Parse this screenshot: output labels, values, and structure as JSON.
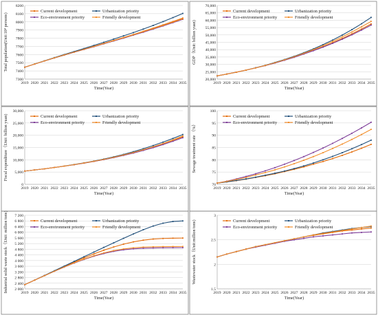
{
  "chart_data": [
    {
      "type": "line",
      "ylabel": "Total population(Unit:10⁴ persons)",
      "xlabel": "Time(Year)",
      "x": [
        "2019",
        "2020",
        "2021",
        "2022",
        "2023",
        "2024",
        "2025",
        "2026",
        "2027",
        "2028",
        "2029",
        "2030",
        "2031",
        "2032",
        "2033",
        "2034",
        "2035"
      ],
      "ylim": [
        7300,
        8200
      ],
      "yticks": [
        7300,
        7400,
        7500,
        7600,
        7700,
        7800,
        7900,
        8000,
        8100,
        8200
      ],
      "ytick_labels": [
        "7300",
        "7400",
        "7500",
        "7600",
        "7700",
        "7800",
        "7900",
        "8000",
        "8100",
        "8200"
      ],
      "grid": true,
      "legend_position": "top-left",
      "series": [
        {
          "name": "Current development",
          "color": "#e46c0a",
          "values": [
            7445,
            7484,
            7523,
            7560,
            7596,
            7631,
            7666,
            7701,
            7737,
            7773,
            7809,
            7846,
            7884,
            7923,
            7963,
            8004,
            8046
          ]
        },
        {
          "name": "Urbanization priority",
          "color": "#1f4e79",
          "values": [
            7445,
            7485,
            7524,
            7563,
            7600,
            7637,
            7674,
            7712,
            7750,
            7789,
            7829,
            7869,
            7912,
            7956,
            8003,
            8052,
            8103
          ]
        },
        {
          "name": "Eco-environment priority",
          "color": "#7d3c98",
          "values": [
            7445,
            7483,
            7521,
            7558,
            7593,
            7628,
            7662,
            7696,
            7731,
            7766,
            7801,
            7837,
            7873,
            7911,
            7950,
            7990,
            8031
          ]
        },
        {
          "name": "Friendly development",
          "color": "#f28e2b",
          "values": [
            7445,
            7484,
            7522,
            7559,
            7595,
            7630,
            7664,
            7699,
            7734,
            7770,
            7806,
            7842,
            7879,
            7917,
            7956,
            7996,
            8037
          ]
        }
      ]
    },
    {
      "type": "line",
      "ylabel": "GDP（Unit: billion yuan)",
      "xlabel": "Time(Year)",
      "x": [
        "2019",
        "2020",
        "2021",
        "2022",
        "2023",
        "2024",
        "2025",
        "2026",
        "2027",
        "2028",
        "2029",
        "2030",
        "2031",
        "2032",
        "2033",
        "2034",
        "2035"
      ],
      "ylim": [
        20000,
        70000
      ],
      "yticks": [
        20000,
        25000,
        30000,
        35000,
        40000,
        45000,
        50000,
        55000,
        60000,
        65000,
        70000
      ],
      "ytick_labels": [
        "20,000",
        "25,000",
        "30,000",
        "35,000",
        "40,000",
        "45,000",
        "50,000",
        "55,000",
        "60,000",
        "65,000",
        "70,000"
      ],
      "grid": true,
      "legend_position": "top-left",
      "series": [
        {
          "name": "Current development",
          "color": "#e46c0a",
          "values": [
            22200,
            23400,
            24700,
            26100,
            27600,
            29200,
            31000,
            32900,
            34900,
            37100,
            39500,
            42000,
            44700,
            47600,
            50700,
            54000,
            57500
          ]
        },
        {
          "name": "Urbanization priority",
          "color": "#1f4e79",
          "values": [
            22200,
            23400,
            24700,
            26100,
            27700,
            29400,
            31300,
            33300,
            35500,
            37900,
            40500,
            43400,
            46500,
            49900,
            53600,
            57600,
            61900
          ]
        },
        {
          "name": "Eco-environment priority",
          "color": "#7d3c98",
          "values": [
            22200,
            23400,
            24700,
            26100,
            27600,
            29200,
            30900,
            32800,
            34800,
            37000,
            39300,
            41700,
            44300,
            47100,
            50100,
            53300,
            56700
          ]
        },
        {
          "name": "Friendly development",
          "color": "#f28e2b",
          "values": [
            22200,
            23400,
            24700,
            26100,
            27600,
            29300,
            31100,
            33100,
            35200,
            37500,
            40000,
            42700,
            45600,
            48700,
            52000,
            55500,
            59200
          ]
        }
      ]
    },
    {
      "type": "line",
      "ylabel": "Fiscal expenditure（Unit: billion yuan)",
      "xlabel": "Time(Year)",
      "x": [
        "2019",
        "2020",
        "2021",
        "2022",
        "2023",
        "2024",
        "2025",
        "2026",
        "2027",
        "2028",
        "2029",
        "2030",
        "2031",
        "2032",
        "2033",
        "2034",
        "2035"
      ],
      "ylim": [
        0,
        30000
      ],
      "yticks": [
        0,
        5000,
        10000,
        15000,
        20000,
        25000,
        30000
      ],
      "ytick_labels": [
        "0",
        "5,000",
        "10,000",
        "15,000",
        "20,000",
        "25,000",
        "30,000"
      ],
      "grid": true,
      "legend_position": "top-left",
      "series": [
        {
          "name": "Current development",
          "color": "#e46c0a",
          "values": [
            5400,
            5850,
            6330,
            6850,
            7400,
            8000,
            8650,
            9350,
            10100,
            10950,
            11900,
            12900,
            14000,
            15200,
            16500,
            17900,
            19400
          ]
        },
        {
          "name": "Urbanization priority",
          "color": "#1f4e79",
          "values": [
            5400,
            5850,
            6340,
            6870,
            7450,
            8080,
            8760,
            9500,
            10300,
            11200,
            12200,
            13300,
            14500,
            15800,
            17200,
            18700,
            20300
          ]
        },
        {
          "name": "Eco-environment priority",
          "color": "#7d3c98",
          "values": [
            5400,
            5850,
            6330,
            6850,
            7400,
            7990,
            8630,
            9320,
            10060,
            10880,
            11780,
            12750,
            13800,
            14950,
            16200,
            17550,
            19000
          ]
        },
        {
          "name": "Friendly development",
          "color": "#f28e2b",
          "values": [
            5400,
            5850,
            6335,
            6860,
            7420,
            8030,
            8690,
            9400,
            10170,
            11020,
            11960,
            12980,
            14100,
            15320,
            16650,
            18100,
            19700
          ]
        }
      ]
    },
    {
      "type": "line",
      "ylabel": "Sewage treatment rate （%）",
      "xlabel": "Time(Year)",
      "x": [
        "2019",
        "2020",
        "2021",
        "2022",
        "2023",
        "2024",
        "2025",
        "2026",
        "2027",
        "2028",
        "2029",
        "2030",
        "2031",
        "2032",
        "2033",
        "2034",
        "2035"
      ],
      "ylim": [
        70,
        100
      ],
      "yticks": [
        70,
        75,
        80,
        85,
        90,
        95,
        100
      ],
      "ytick_labels": [
        "70",
        "75",
        "80",
        "85",
        "90",
        "95",
        "100"
      ],
      "grid": true,
      "legend_position": "top-left",
      "series": [
        {
          "name": "Current development",
          "color": "#e46c0a",
          "values": [
            70.5,
            71.0,
            71.5,
            72.1,
            72.8,
            73.5,
            74.3,
            75.2,
            76.1,
            77.1,
            78.2,
            79.3,
            80.5,
            81.8,
            83.2,
            84.7,
            86.3
          ]
        },
        {
          "name": "Urbanization priority",
          "color": "#1f4e79",
          "values": [
            70.5,
            71.0,
            71.6,
            72.2,
            72.9,
            73.7,
            74.5,
            75.4,
            76.4,
            77.5,
            78.7,
            80.0,
            81.4,
            82.9,
            84.5,
            86.2,
            88.0
          ]
        },
        {
          "name": "Eco-environment priority",
          "color": "#7d3c98",
          "values": [
            70.5,
            71.3,
            72.2,
            73.2,
            74.3,
            75.5,
            76.8,
            78.2,
            79.7,
            81.3,
            83.0,
            84.8,
            86.7,
            88.7,
            90.8,
            93.0,
            95.3
          ]
        },
        {
          "name": "Friendly development",
          "color": "#f28e2b",
          "values": [
            70.5,
            71.2,
            72.0,
            72.8,
            73.8,
            74.8,
            75.9,
            77.1,
            78.4,
            79.8,
            81.3,
            82.9,
            84.6,
            86.4,
            88.3,
            90.3,
            92.4
          ]
        }
      ]
    },
    {
      "type": "line",
      "ylabel": "Industrial solid waste stock（Unit: million tons)",
      "xlabel": "Time(Year)",
      "x": [
        "2019",
        "2020",
        "2021",
        "2022",
        "2023",
        "2024",
        "2025",
        "2026",
        "2027",
        "2028",
        "2029",
        "2030",
        "2031",
        "2032",
        "2033",
        "2034",
        "2035"
      ],
      "ylim": [
        2000,
        7200
      ],
      "yticks": [
        2000,
        2400,
        2800,
        3200,
        3600,
        4000,
        4400,
        4800,
        5200,
        5600,
        6000,
        6400,
        6800,
        7200
      ],
      "ytick_labels": [
        "2 000",
        "2 400",
        "2 800",
        "3 200",
        "3 600",
        "4 000",
        "4 400",
        "4 800",
        "5 200",
        "5 600",
        "6 000",
        "6 400",
        "6 800",
        "7 200"
      ],
      "grid": true,
      "legend_position": "top-left",
      "series": [
        {
          "name": "Current development",
          "color": "#e46c0a",
          "values": [
            2300,
            2620,
            2940,
            3260,
            3580,
            3890,
            4190,
            4470,
            4730,
            4960,
            5160,
            5320,
            5440,
            5520,
            5560,
            5580,
            5590
          ]
        },
        {
          "name": "Urbanization priority",
          "color": "#1f4e79",
          "values": [
            2300,
            2620,
            2950,
            3280,
            3610,
            3940,
            4270,
            4600,
            4930,
            5250,
            5570,
            5880,
            6180,
            6440,
            6640,
            6760,
            6800
          ]
        },
        {
          "name": "Eco-environment priority",
          "color": "#7d3c98",
          "values": [
            2300,
            2615,
            2930,
            3240,
            3540,
            3820,
            4080,
            4310,
            4500,
            4650,
            4760,
            4830,
            4870,
            4890,
            4900,
            4905,
            4910
          ]
        },
        {
          "name": "Friendly development",
          "color": "#f28e2b",
          "values": [
            2300,
            2615,
            2932,
            3245,
            3550,
            3835,
            4100,
            4340,
            4540,
            4700,
            4820,
            4900,
            4950,
            4975,
            4985,
            4990,
            4995
          ]
        }
      ]
    },
    {
      "type": "line",
      "ylabel": "Wastewater stock（Unit:million tons)",
      "xlabel": "Time(Year)",
      "x": [
        "2019",
        "2020",
        "2021",
        "2022",
        "2023",
        "2024",
        "2025",
        "2026",
        "2027",
        "2028",
        "2029",
        "2030",
        "2031",
        "2032",
        "2033",
        "2034",
        "2035"
      ],
      "ylim": [
        1.5,
        3.0
      ],
      "yticks": [
        1.5,
        2.0,
        2.5,
        3.0
      ],
      "ytick_labels": [
        "1.5",
        "2",
        "2.5",
        "3"
      ],
      "grid": true,
      "legend_position": "top-left",
      "series": [
        {
          "name": "Current development",
          "color": "#e46c0a",
          "values": [
            2.15,
            2.21,
            2.26,
            2.31,
            2.36,
            2.4,
            2.44,
            2.48,
            2.52,
            2.56,
            2.59,
            2.62,
            2.65,
            2.68,
            2.7,
            2.72,
            2.74
          ]
        },
        {
          "name": "Urbanization priority",
          "color": "#1f4e79",
          "values": [
            2.15,
            2.21,
            2.26,
            2.31,
            2.36,
            2.4,
            2.44,
            2.48,
            2.52,
            2.56,
            2.6,
            2.64,
            2.67,
            2.7,
            2.73,
            2.75,
            2.77
          ]
        },
        {
          "name": "Eco-environment priority",
          "color": "#7d3c98",
          "values": [
            2.15,
            2.21,
            2.26,
            2.31,
            2.35,
            2.39,
            2.43,
            2.47,
            2.5,
            2.53,
            2.56,
            2.58,
            2.6,
            2.62,
            2.64,
            2.65,
            2.66
          ]
        },
        {
          "name": "Friendly development",
          "color": "#f28e2b",
          "values": [
            2.15,
            2.21,
            2.26,
            2.31,
            2.36,
            2.4,
            2.44,
            2.48,
            2.52,
            2.56,
            2.6,
            2.63,
            2.66,
            2.69,
            2.72,
            2.75,
            2.78
          ]
        }
      ]
    }
  ]
}
